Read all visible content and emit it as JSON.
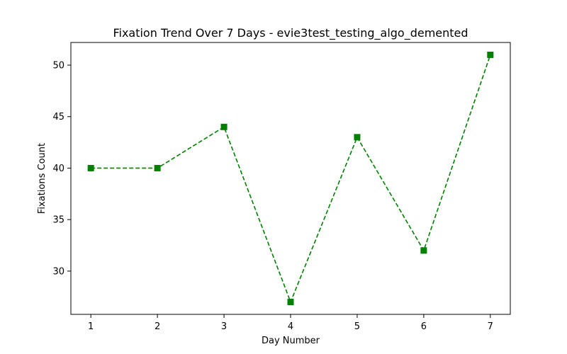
{
  "chart_data": {
    "type": "line",
    "title": "Fixation Trend Over 7 Days - evie3test_testing_algo_demented",
    "xlabel": "Day Number",
    "ylabel": "Fixations Count",
    "x": [
      1,
      2,
      3,
      4,
      5,
      6,
      7
    ],
    "series": [
      {
        "values": [
          40,
          40,
          44,
          27,
          43,
          32,
          51
        ]
      }
    ],
    "xticks": [
      "1",
      "2",
      "3",
      "4",
      "5",
      "6",
      "7"
    ],
    "yticks": [
      30,
      35,
      40,
      45,
      50
    ],
    "xlim": [
      0.7,
      7.3
    ],
    "ylim": [
      25.8,
      52.2
    ],
    "grid": false,
    "line_style": "dashed",
    "marker": "square",
    "color": "#008000"
  }
}
